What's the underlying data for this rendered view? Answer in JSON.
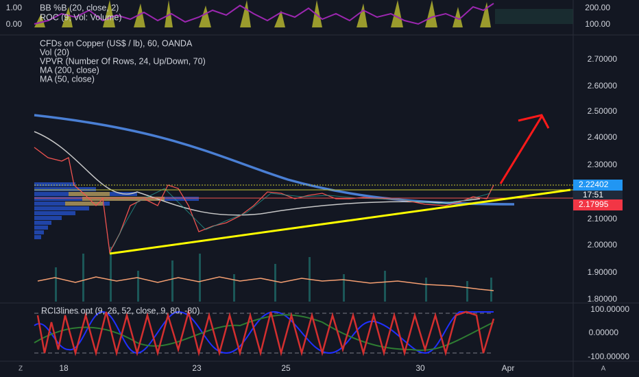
{
  "top_pane": {
    "left_labels": [
      "1.00",
      "0.00"
    ],
    "legend": [
      "BB %B (20, close, 2)",
      "ROC (9, Vol: Volume)"
    ],
    "right_labels": [
      "200.00",
      "100.00"
    ]
  },
  "main_pane": {
    "legend": [
      "CFDs on Copper (US$ / lb), 60, OANDA",
      "Vol (20)",
      "VPVR (Number Of Rows, 24, Up/Down, 70)",
      "MA (200, close)",
      "MA (50, close)"
    ],
    "price_axis": [
      "2.70000",
      "2.60000",
      "2.50000",
      "2.40000",
      "2.30000",
      "2.10000",
      "2.00000",
      "1.90000",
      "1.80000"
    ],
    "tags": {
      "last_price": "2.22402",
      "countdown": "17:51",
      "line_price": "2.17995"
    }
  },
  "rci_pane": {
    "legend": "RCI3lines opt (9, 26, 52, close, 9, 80, -80)",
    "price_axis": [
      "100.00000",
      "0.00000",
      "-100.00000"
    ]
  },
  "time_axis": [
    "18",
    "23",
    "25",
    "30",
    "Apr"
  ],
  "corner": [
    "Z",
    "A"
  ]
}
